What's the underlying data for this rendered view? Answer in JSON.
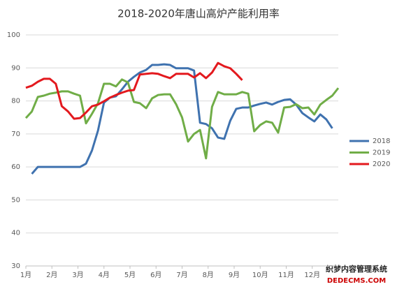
{
  "chart_data": {
    "type": "line",
    "title": "2018-2020年唐山高炉产能利用率",
    "x": [
      1.0,
      1.23,
      1.46,
      1.69,
      1.92,
      2.15,
      2.38,
      2.62,
      2.85,
      3.08,
      3.31,
      3.54,
      3.77,
      4.0,
      4.23,
      4.46,
      4.69,
      4.92,
      5.15,
      5.38,
      5.62,
      5.85,
      6.08,
      6.31,
      6.54,
      6.77,
      7.0,
      7.23,
      7.46,
      7.69,
      7.92,
      8.15,
      8.38,
      8.62,
      8.85,
      9.08,
      9.31,
      9.54,
      9.77,
      10.0,
      10.23,
      10.46,
      10.69,
      10.92,
      11.15,
      11.38,
      11.62,
      11.85,
      12.08,
      12.31,
      12.54,
      12.77,
      13.0
    ],
    "series": [
      {
        "name": "2018",
        "color": "#3f72af",
        "values": [
          null,
          57.9,
          60,
          60,
          60,
          60,
          60,
          60,
          60,
          60,
          61,
          65,
          71,
          79.5,
          81,
          81.4,
          83.5,
          85.8,
          87.3,
          88.6,
          89.4,
          90.9,
          90.9,
          91.1,
          90.9,
          89.9,
          89.9,
          89.9,
          89.2,
          73.4,
          73,
          71.7,
          68.9,
          68.5,
          74,
          77.6,
          78,
          78,
          78.6,
          79.1,
          79.5,
          78.9,
          79.7,
          80.3,
          80.5,
          78.9,
          76.3,
          75,
          73.8,
          75.9,
          74.4,
          71.7,
          null
        ]
      },
      {
        "name": "2019",
        "color": "#70ad47",
        "values": [
          74.8,
          76.8,
          81.2,
          81.6,
          82.2,
          82.5,
          82.9,
          82.9,
          82.2,
          81.6,
          73.2,
          76.1,
          79.3,
          85.2,
          85.2,
          84.4,
          86.5,
          85.6,
          79.7,
          79.3,
          77.8,
          80.8,
          81.8,
          82,
          82,
          79,
          75,
          67.7,
          70,
          71.2,
          62.6,
          78.2,
          82.7,
          82,
          82,
          82,
          82.7,
          82.2,
          70.8,
          72.7,
          73.8,
          73.4,
          70.4,
          78,
          78.2,
          79,
          77.8,
          78,
          75.9,
          78.9,
          80.3,
          81.6,
          83.9
        ]
      },
      {
        "name": "2020",
        "color": "#e3191e",
        "values": [
          84,
          84.6,
          85.8,
          86.7,
          86.7,
          85.2,
          78.4,
          76.8,
          74.6,
          74.8,
          76.5,
          78.4,
          78.9,
          79.9,
          81,
          81.8,
          82.5,
          83.1,
          83.3,
          88,
          88.2,
          88.4,
          88.2,
          87.5,
          86.9,
          88.2,
          88.2,
          88.2,
          87.1,
          88.4,
          86.9,
          88.6,
          91.5,
          90.5,
          89.9,
          88.2,
          86.3,
          null,
          null,
          null,
          null,
          null,
          null,
          null,
          null,
          null,
          null,
          null,
          null,
          null,
          null,
          null,
          null
        ]
      }
    ],
    "xlim": [
      1,
      13
    ],
    "xticks": [
      {
        "value": 1,
        "label": "1月"
      },
      {
        "value": 2,
        "label": "2月"
      },
      {
        "value": 3,
        "label": "3月"
      },
      {
        "value": 4,
        "label": "4月"
      },
      {
        "value": 5,
        "label": "5月"
      },
      {
        "value": 6,
        "label": "6月"
      },
      {
        "value": 7,
        "label": "7月"
      },
      {
        "value": 8,
        "label": "8月"
      },
      {
        "value": 9,
        "label": "9月"
      },
      {
        "value": 10,
        "label": "10月"
      },
      {
        "value": 11,
        "label": "11月"
      },
      {
        "value": 12,
        "label": "12月"
      }
    ],
    "ylim": [
      30,
      100
    ],
    "yticks": [
      30,
      40,
      50,
      60,
      70,
      80,
      90,
      100
    ],
    "grid": true,
    "legend": "right",
    "watermark": {
      "title": "织梦内容管理系统",
      "site": "DEDECMS.COM"
    }
  }
}
